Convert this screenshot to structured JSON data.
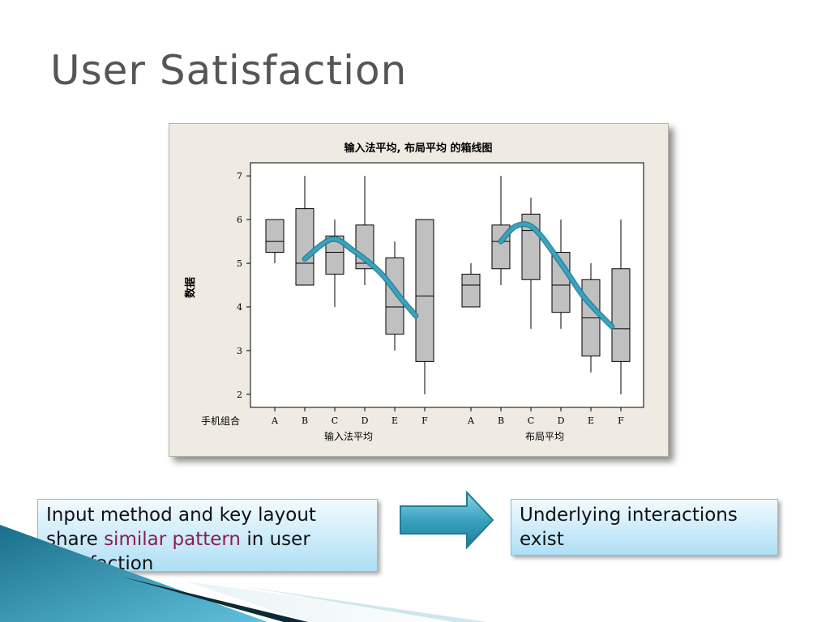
{
  "slide": {
    "title": "User Satisfaction",
    "left_box": {
      "text_before": "Input method and key layout share ",
      "highlight": "similar pattern",
      "text_after": " in user satisfaction"
    },
    "right_box": {
      "text": "Underlying interactions exist"
    },
    "colors": {
      "accent_cyan": "#3aa3be",
      "highlight": "#8a1f4a",
      "box_fill": "#aedff5",
      "title": "#555555"
    }
  },
  "chart_data": {
    "type": "boxplot",
    "title": "输入法平均, 布局平均 的箱线图",
    "ylabel": "数据",
    "ylim": [
      1.7,
      7.3
    ],
    "yticks": [
      2,
      3,
      4,
      5,
      6,
      7
    ],
    "grid": false,
    "category_axis_label": "手机组合",
    "groups": [
      {
        "name": "输入法平均",
        "boxes": [
          {
            "category": "A",
            "min": 5.0,
            "q1": 5.25,
            "median": 5.5,
            "q3": 6.0,
            "max": 6.0
          },
          {
            "category": "B",
            "min": 4.5,
            "q1": 4.5,
            "median": 5.0,
            "q3": 6.25,
            "max": 7.0
          },
          {
            "category": "C",
            "min": 4.0,
            "q1": 4.75,
            "median": 5.25,
            "q3": 5.625,
            "max": 6.0
          },
          {
            "category": "D",
            "min": 4.5,
            "q1": 4.875,
            "median": 5.0,
            "q3": 5.875,
            "max": 7.0
          },
          {
            "category": "E",
            "min": 3.0,
            "q1": 3.375,
            "median": 4.0,
            "q3": 5.125,
            "max": 5.5
          },
          {
            "category": "F",
            "min": 2.0,
            "q1": 2.75,
            "median": 4.25,
            "q3": 6.0,
            "max": 6.0
          }
        ],
        "trend_curve": [
          [
            1.0,
            5.1
          ],
          [
            1.9,
            5.55
          ],
          [
            2.6,
            5.3
          ],
          [
            3.5,
            4.8
          ],
          [
            4.2,
            4.2
          ],
          [
            4.7,
            3.8
          ]
        ]
      },
      {
        "name": "布局平均",
        "boxes": [
          {
            "category": "A",
            "min": 4.0,
            "q1": 4.0,
            "median": 4.5,
            "q3": 4.75,
            "max": 5.0
          },
          {
            "category": "B",
            "min": 4.5,
            "q1": 4.875,
            "median": 5.5,
            "q3": 5.875,
            "max": 7.0
          },
          {
            "category": "C",
            "min": 3.5,
            "q1": 4.625,
            "median": 5.75,
            "q3": 6.125,
            "max": 6.5
          },
          {
            "category": "D",
            "min": 3.5,
            "q1": 3.875,
            "median": 4.5,
            "q3": 5.25,
            "max": 6.0
          },
          {
            "category": "E",
            "min": 2.5,
            "q1": 2.875,
            "median": 3.75,
            "q3": 4.625,
            "max": 5.0
          },
          {
            "category": "F",
            "min": 2.0,
            "q1": 2.75,
            "median": 3.5,
            "q3": 4.875,
            "max": 6.0
          }
        ],
        "trend_curve": [
          [
            1.0,
            5.5
          ],
          [
            1.5,
            5.85
          ],
          [
            2.1,
            5.8
          ],
          [
            3.0,
            5.0
          ],
          [
            3.8,
            4.2
          ],
          [
            4.7,
            3.55
          ]
        ]
      }
    ]
  }
}
